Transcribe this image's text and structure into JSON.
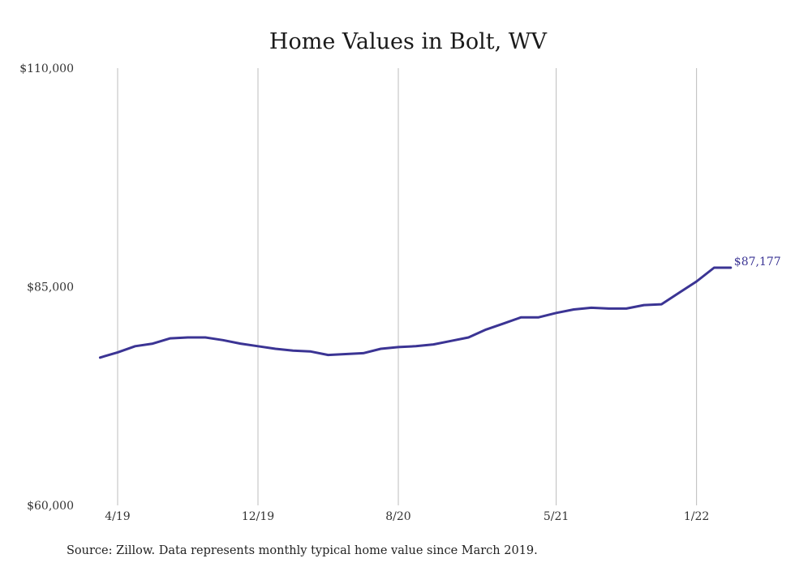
{
  "chart_data": {
    "type": "line",
    "title": "Home Values in Bolt, WV",
    "xlabel": "",
    "ylabel": "",
    "ylim": [
      60000,
      110000
    ],
    "y_ticks": [
      "$110,000",
      "$85,000",
      "$60,000"
    ],
    "y_tick_values": [
      110000,
      85000,
      60000
    ],
    "x_tick_labels": [
      "4/19",
      "12/19",
      "8/20",
      "5/21",
      "1/22"
    ],
    "x_tick_dates": [
      "2019-04",
      "2019-12",
      "2020-08",
      "2021-05",
      "2022-01"
    ],
    "x_range": [
      "2019-03",
      "2022-03"
    ],
    "grid": {
      "vertical": true,
      "horizontal": false
    },
    "series": [
      {
        "color": "#3b3494",
        "x": [
          "2019-03",
          "2019-04",
          "2019-05",
          "2019-06",
          "2019-07",
          "2019-08",
          "2019-09",
          "2019-10",
          "2019-11",
          "2019-12",
          "2020-01",
          "2020-02",
          "2020-03",
          "2020-04",
          "2020-05",
          "2020-06",
          "2020-07",
          "2020-08",
          "2020-09",
          "2020-10",
          "2020-11",
          "2020-12",
          "2021-01",
          "2021-02",
          "2021-03",
          "2021-04",
          "2021-05",
          "2021-06",
          "2021-07",
          "2021-08",
          "2021-09",
          "2021-10",
          "2021-11",
          "2021-12",
          "2022-01",
          "2022-02",
          "2022-03"
        ],
        "values": [
          76900,
          77500,
          78200,
          78500,
          79100,
          79200,
          79200,
          78900,
          78500,
          78200,
          77900,
          77700,
          77600,
          77200,
          77300,
          77400,
          77900,
          78100,
          78200,
          78400,
          78800,
          79200,
          80100,
          80800,
          81500,
          81500,
          82000,
          82400,
          82600,
          82500,
          82500,
          82900,
          83000,
          84300,
          85600,
          87177,
          87177
        ],
        "end_label": "$87,177"
      }
    ]
  },
  "footer": {
    "source": "Source: Zillow. Data represents monthly typical home value since March 2019."
  }
}
